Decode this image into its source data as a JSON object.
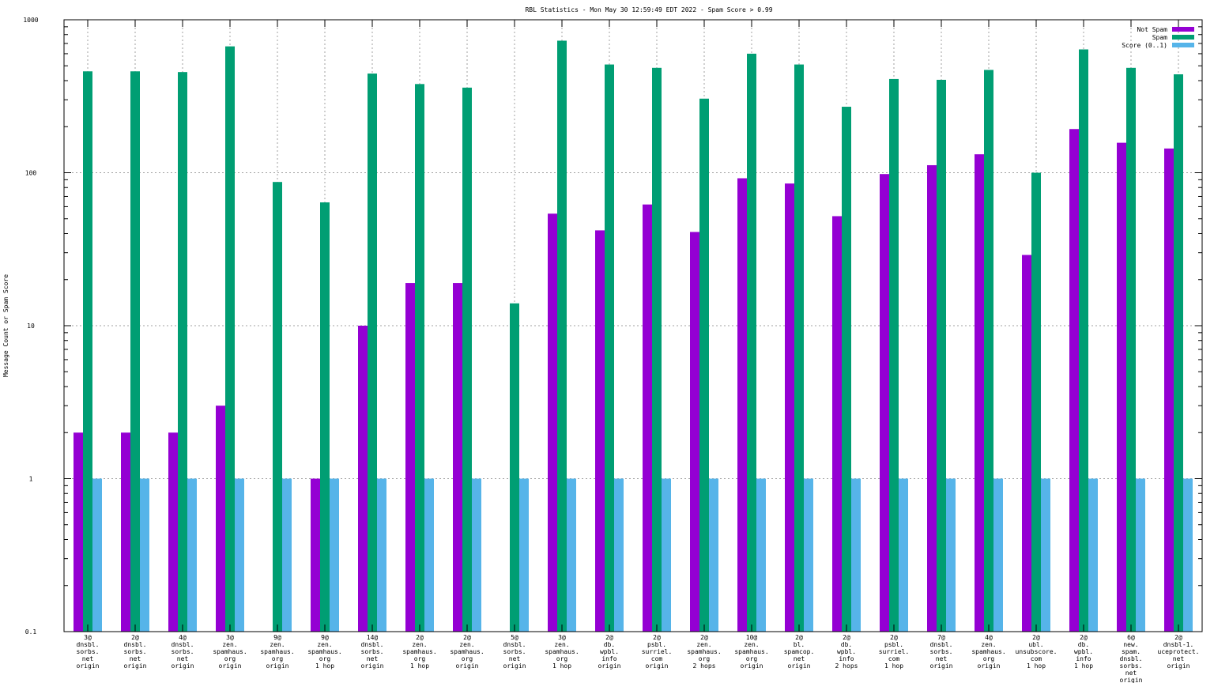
{
  "chart_data": {
    "type": "bar",
    "title": "RBL Statistics - Mon May 30 12:59:49 EDT 2022 - Spam Score > 0.99",
    "xlabel": "",
    "ylabel": "Message Count or Spam Score",
    "yscale": "log",
    "ylim": [
      0.1,
      1000
    ],
    "yticks": [
      "0.1",
      "1",
      "10",
      "100",
      "1000"
    ],
    "grid": true,
    "legend_position": "top-right",
    "categories": [
      [
        "3@",
        "dnsbl.",
        "sorbs.",
        "net",
        "origin"
      ],
      [
        "2@",
        "dnsbl.",
        "sorbs.",
        "net",
        "origin"
      ],
      [
        "4@",
        "dnsbl.",
        "sorbs.",
        "net",
        "origin"
      ],
      [
        "3@",
        "zen.",
        "spamhaus.",
        "org",
        "origin"
      ],
      [
        "9@",
        "zen.",
        "spamhaus.",
        "org",
        "origin"
      ],
      [
        "9@",
        "zen.",
        "spamhaus.",
        "org",
        "1 hop"
      ],
      [
        "14@",
        "dnsbl.",
        "sorbs.",
        "net",
        "origin"
      ],
      [
        "2@",
        "zen.",
        "spamhaus.",
        "org",
        "1 hop"
      ],
      [
        "2@",
        "zen.",
        "spamhaus.",
        "org",
        "origin"
      ],
      [
        "5@",
        "dnsbl.",
        "sorbs.",
        "net",
        "origin"
      ],
      [
        "3@",
        "zen.",
        "spamhaus.",
        "org",
        "1 hop"
      ],
      [
        "2@",
        "db.",
        "wpbl.",
        "info",
        "origin"
      ],
      [
        "2@",
        "psbl.",
        "surriel.",
        "com",
        "origin"
      ],
      [
        "2@",
        "zen.",
        "spamhaus.",
        "org",
        "2 hops"
      ],
      [
        "10@",
        "zen.",
        "spamhaus.",
        "org",
        "origin"
      ],
      [
        "2@",
        "bl.",
        "spamcop.",
        "net",
        "origin"
      ],
      [
        "2@",
        "db.",
        "wpbl.",
        "info",
        "2 hops"
      ],
      [
        "2@",
        "psbl.",
        "surriel.",
        "com",
        "1 hop"
      ],
      [
        "7@",
        "dnsbl.",
        "sorbs.",
        "net",
        "origin"
      ],
      [
        "4@",
        "zen.",
        "spamhaus.",
        "org",
        "origin"
      ],
      [
        "2@",
        "ubl.",
        "unsubscore.",
        "com",
        "1 hop"
      ],
      [
        "2@",
        "db.",
        "wpbl.",
        "info",
        "1 hop"
      ],
      [
        "6@",
        "new.",
        "spam.",
        "dnsbl.",
        "sorbs.",
        "net",
        "origin"
      ],
      [
        "2@",
        "dnsbl-1.",
        "uceprotect.",
        "net",
        "origin"
      ]
    ],
    "series": [
      {
        "name": "Not Spam",
        "color": "#9400d3",
        "values": [
          2,
          2,
          2,
          3,
          null,
          1,
          10,
          19,
          19,
          null,
          54,
          42,
          62,
          41,
          92,
          85,
          52,
          98,
          112,
          132,
          29,
          193,
          157,
          144
        ]
      },
      {
        "name": "Spam",
        "color": "#009e73",
        "values": [
          460,
          460,
          455,
          670,
          87,
          64,
          445,
          380,
          360,
          14,
          730,
          510,
          485,
          305,
          600,
          510,
          270,
          410,
          405,
          470,
          100,
          640,
          485,
          440
        ]
      },
      {
        "name": "Score (0..1)",
        "color": "#56b4e9",
        "values": [
          1,
          1,
          1,
          1,
          1,
          1,
          1,
          1,
          1,
          1,
          1,
          1,
          1,
          1,
          1,
          1,
          1,
          1,
          1,
          1,
          1,
          1,
          1,
          1
        ]
      }
    ]
  }
}
